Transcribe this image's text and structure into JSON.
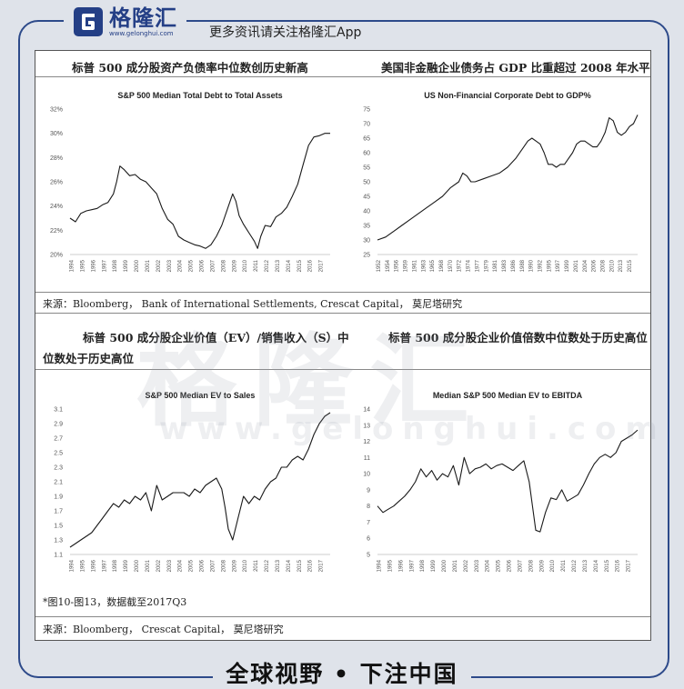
{
  "header": {
    "brand_name": "格隆汇",
    "brand_url": "www.gelonghui.com",
    "promo_text": "更多资讯请关注格隆汇App"
  },
  "row1": {
    "left_title": "标普 500 成分股资产负债率中位数创历史新高",
    "right_title": "美国非金融企业债务占 GDP 比重超过 2008 年水平",
    "source": "来源：Bloomberg， Bank of International Settlements, Crescat Capital， 莫尼塔研究"
  },
  "row2": {
    "left_title_line1": "标普 500 成分股企业价值（EV）/销售收入（S）中",
    "left_title_line2": "位数处于历史高位",
    "right_title": "标普 500 成分股企业价值倍数中位数处于历史高位",
    "note": "*图10-图13，数据截至2017Q3",
    "source": "来源：Bloomberg， Crescat Capital， 莫尼塔研究"
  },
  "footer": {
    "slogan": "全球视野 • 下注中国"
  },
  "watermark": {
    "big": "格隆汇",
    "small": "www.gelonghui.com"
  },
  "colors": {
    "line": "#1a1a1a",
    "brand": "#243f86",
    "frame": "#2d4a8a"
  },
  "chart_data": [
    {
      "type": "line",
      "title": "S&P 500 Median Total Debt to Total Assets",
      "x_tick_labels": [
        "1994",
        "1995",
        "1996",
        "1997",
        "1998",
        "1999",
        "2000",
        "2001",
        "2002",
        "2003",
        "2004",
        "2005",
        "2006",
        "2007",
        "2008",
        "2009",
        "2010",
        "2011",
        "2012",
        "2013",
        "2014",
        "2015",
        "2016",
        "2017"
      ],
      "y_tick_labels": [
        "20%",
        "22%",
        "24%",
        "26%",
        "28%",
        "30%",
        "32%"
      ],
      "xlim": [
        1994,
        2018
      ],
      "ylim": [
        20,
        32
      ],
      "series": [
        {
          "x": [
            1994,
            1994.5,
            1995,
            1995.5,
            1996,
            1996.5,
            1997,
            1997.5,
            1998,
            1998.3,
            1998.6,
            1999,
            1999.5,
            2000,
            2000.5,
            2001,
            2001.5,
            2002,
            2002.5,
            2003,
            2003.5,
            2004,
            2004.5,
            2005,
            2005.5,
            2006,
            2006.5,
            2007,
            2007.5,
            2008,
            2008.5,
            2009,
            2009.3,
            2009.6,
            2010,
            2010.5,
            2011,
            2011.3,
            2011.6,
            2012,
            2012.5,
            2013,
            2013.5,
            2014,
            2014.5,
            2015,
            2015.5,
            2016,
            2016.5,
            2017,
            2017.5,
            2018
          ],
          "values": [
            23,
            22.7,
            23.4,
            23.6,
            23.7,
            23.8,
            24.1,
            24.3,
            25,
            26,
            27.3,
            27,
            26.5,
            26.6,
            26.2,
            26,
            25.5,
            25,
            23.8,
            22.9,
            22.5,
            21.5,
            21.2,
            21,
            20.8,
            20.7,
            20.5,
            20.8,
            21.5,
            22.4,
            23.7,
            25,
            24.4,
            23.2,
            22.5,
            21.8,
            21.1,
            20.5,
            21.5,
            22.4,
            22.3,
            23.1,
            23.4,
            23.9,
            24.8,
            25.8,
            27.4,
            29,
            29.7,
            29.8,
            30,
            30
          ]
        }
      ]
    },
    {
      "type": "line",
      "title": "US Non-Financial Corporate Debt to GDP%",
      "x_tick_labels": [
        "1952",
        "1954",
        "1956",
        "1959",
        "1961",
        "1963",
        "1965",
        "1968",
        "1970",
        "1972",
        "1974",
        "1977",
        "1979",
        "1981",
        "1983",
        "1986",
        "1988",
        "1990",
        "1992",
        "1995",
        "1997",
        "1999",
        "2001",
        "2004",
        "2006",
        "2008",
        "2010",
        "2013",
        "2015"
      ],
      "y_tick_labels": [
        "25",
        "30",
        "35",
        "40",
        "45",
        "50",
        "55",
        "60",
        "65",
        "70",
        "75"
      ],
      "xlim": [
        1952,
        2016
      ],
      "ylim": [
        25,
        75
      ],
      "series": [
        {
          "x": [
            1952,
            1954,
            1956,
            1958,
            1960,
            1962,
            1964,
            1966,
            1968,
            1970,
            1972,
            1973,
            1974,
            1975,
            1976,
            1978,
            1980,
            1982,
            1984,
            1986,
            1988,
            1989,
            1990,
            1991,
            1992,
            1993,
            1994,
            1995,
            1996,
            1997,
            1998,
            1999,
            2000,
            2001,
            2002,
            2003,
            2004,
            2005,
            2006,
            2007,
            2008,
            2009,
            2010,
            2011,
            2012,
            2013,
            2014,
            2015,
            2016
          ],
          "values": [
            30,
            31,
            33,
            35,
            37,
            39,
            41,
            43,
            45,
            48,
            50,
            53,
            52,
            50,
            50,
            51,
            52,
            53,
            55,
            58,
            62,
            64,
            65,
            64,
            63,
            60,
            56,
            56,
            55,
            56,
            56,
            58,
            60,
            63,
            64,
            64,
            63,
            62,
            62,
            64,
            67,
            72,
            71,
            67,
            66,
            67,
            69,
            70,
            73
          ]
        }
      ]
    },
    {
      "type": "line",
      "title": "S&P 500 Median EV to Sales",
      "x_tick_labels": [
        "1994",
        "1995",
        "1996",
        "1997",
        "1998",
        "1999",
        "2000",
        "2001",
        "2002",
        "2003",
        "2004",
        "2005",
        "2006",
        "2007",
        "2008",
        "2009",
        "2010",
        "2011",
        "2012",
        "2013",
        "2014",
        "2015",
        "2016",
        "2017"
      ],
      "y_tick_labels": [
        "1.1",
        "1.3",
        "1.5",
        "1.7",
        "1.9",
        "2.1",
        "2.3",
        "2.5",
        "2.7",
        "2.9",
        "3.1"
      ],
      "xlim": [
        1994,
        2018
      ],
      "ylim": [
        1.1,
        3.1
      ],
      "series": [
        {
          "x": [
            1994,
            1994.5,
            1995,
            1995.5,
            1996,
            1996.5,
            1997,
            1997.5,
            1998,
            1998.5,
            1999,
            1999.5,
            2000,
            2000.5,
            2001,
            2001.5,
            2002,
            2002.5,
            2003,
            2003.5,
            2004,
            2004.5,
            2005,
            2005.5,
            2006,
            2006.5,
            2007,
            2007.5,
            2008,
            2008.3,
            2008.6,
            2009,
            2009.5,
            2010,
            2010.5,
            2011,
            2011.5,
            2012,
            2012.5,
            2013,
            2013.5,
            2014,
            2014.5,
            2015,
            2015.5,
            2016,
            2016.5,
            2017,
            2017.5,
            2018
          ],
          "values": [
            1.2,
            1.25,
            1.3,
            1.35,
            1.4,
            1.5,
            1.6,
            1.7,
            1.8,
            1.75,
            1.85,
            1.8,
            1.9,
            1.85,
            1.95,
            1.7,
            2.05,
            1.85,
            1.9,
            1.95,
            1.95,
            1.95,
            1.9,
            2,
            1.95,
            2.05,
            2.1,
            2.15,
            2,
            1.75,
            1.45,
            1.3,
            1.6,
            1.9,
            1.8,
            1.9,
            1.85,
            2,
            2.1,
            2.15,
            2.3,
            2.3,
            2.4,
            2.45,
            2.4,
            2.55,
            2.75,
            2.9,
            3,
            3.05
          ]
        }
      ]
    },
    {
      "type": "line",
      "title": "Median S&P 500 Median EV to EBITDA",
      "x_tick_labels": [
        "1994",
        "1995",
        "1996",
        "1997",
        "1998",
        "1999",
        "2000",
        "2001",
        "2002",
        "2003",
        "2004",
        "2005",
        "2006",
        "2007",
        "2008",
        "2009",
        "2010",
        "2011",
        "2012",
        "2013",
        "2014",
        "2015",
        "2016",
        "2017"
      ],
      "y_tick_labels": [
        "5",
        "6",
        "7",
        "8",
        "9",
        "10",
        "11",
        "12",
        "13",
        "14"
      ],
      "xlim": [
        1994,
        2018
      ],
      "ylim": [
        5,
        14
      ],
      "series": [
        {
          "x": [
            1994,
            1994.5,
            1995,
            1995.5,
            1996,
            1996.5,
            1997,
            1997.5,
            1998,
            1998.5,
            1999,
            1999.5,
            2000,
            2000.5,
            2001,
            2001.5,
            2002,
            2002.5,
            2003,
            2003.5,
            2004,
            2004.5,
            2005,
            2005.5,
            2006,
            2006.5,
            2007,
            2007.5,
            2008,
            2008.3,
            2008.6,
            2009,
            2009.5,
            2010,
            2010.5,
            2011,
            2011.5,
            2012,
            2012.5,
            2013,
            2013.5,
            2014,
            2014.5,
            2015,
            2015.5,
            2016,
            2016.5,
            2017,
            2017.5,
            2018
          ],
          "values": [
            8,
            7.6,
            7.8,
            8,
            8.3,
            8.6,
            9,
            9.5,
            10.3,
            9.8,
            10.2,
            9.6,
            10,
            9.8,
            10.5,
            9.3,
            11,
            10,
            10.3,
            10.4,
            10.6,
            10.3,
            10.5,
            10.6,
            10.4,
            10.2,
            10.5,
            10.8,
            9.5,
            8,
            6.5,
            6.4,
            7.6,
            8.5,
            8.4,
            9,
            8.3,
            8.5,
            8.7,
            9.3,
            10,
            10.6,
            11,
            11.2,
            11,
            11.3,
            12,
            12.2,
            12.4,
            12.7
          ]
        }
      ]
    }
  ]
}
